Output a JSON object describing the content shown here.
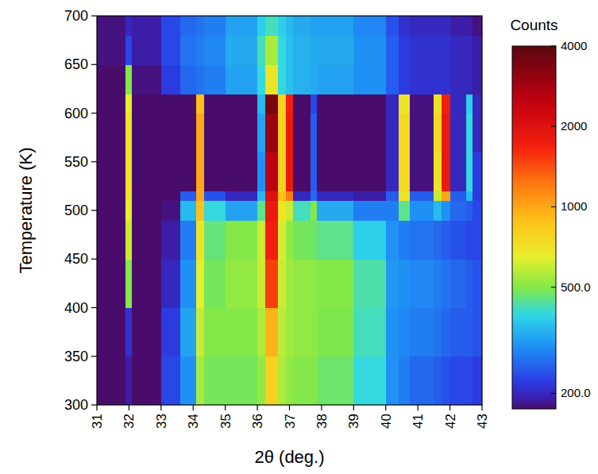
{
  "chart_data": {
    "type": "heatmap",
    "xlabel": "2θ (deg.)",
    "ylabel": "Temperature (K)",
    "colorbar_label": "Counts",
    "xlim": [
      31,
      43
    ],
    "ylim": [
      300,
      700
    ],
    "xticks": [
      31,
      32,
      33,
      34,
      35,
      36,
      37,
      38,
      39,
      40,
      41,
      42,
      43
    ],
    "yticks": [
      300,
      350,
      400,
      450,
      500,
      550,
      600,
      650,
      700
    ],
    "x_edges": [
      31,
      31.9,
      32.1,
      33,
      33.6,
      34.1,
      34.35,
      35,
      36,
      36.25,
      36.65,
      36.9,
      37.1,
      37.65,
      37.85,
      39,
      40,
      40.4,
      40.75,
      41.5,
      41.75,
      42,
      42.5,
      42.7,
      43
    ],
    "y_edges": [
      300,
      350,
      400,
      450,
      490,
      510,
      520,
      560,
      600,
      620,
      650,
      680,
      700
    ],
    "cells": [
      [
        160,
        190,
        170,
        230,
        300,
        550,
        480,
        480,
        520,
        800,
        560,
        520,
        500,
        500,
        470,
        400,
        300,
        280,
        260,
        250,
        240,
        230,
        230,
        220
      ],
      [
        160,
        210,
        170,
        220,
        320,
        600,
        500,
        500,
        560,
        950,
        580,
        540,
        520,
        510,
        490,
        420,
        300,
        290,
        280,
        270,
        260,
        250,
        250,
        240
      ],
      [
        160,
        500,
        170,
        200,
        300,
        650,
        480,
        520,
        600,
        1500,
        600,
        540,
        520,
        510,
        500,
        430,
        310,
        300,
        290,
        280,
        270,
        260,
        250,
        240
      ],
      [
        160,
        600,
        160,
        190,
        280,
        700,
        460,
        500,
        600,
        1700,
        620,
        520,
        480,
        470,
        450,
        380,
        300,
        280,
        270,
        260,
        250,
        240,
        230,
        230
      ],
      [
        150,
        650,
        150,
        180,
        350,
        900,
        400,
        320,
        450,
        1800,
        700,
        600,
        420,
        500,
        330,
        280,
        280,
        450,
        300,
        350,
        300,
        260,
        250,
        230
      ],
      [
        140,
        700,
        140,
        150,
        250,
        1000,
        240,
        200,
        350,
        2000,
        900,
        1200,
        200,
        260,
        200,
        190,
        250,
        700,
        250,
        600,
        1000,
        250,
        350,
        220
      ],
      [
        130,
        700,
        130,
        140,
        160,
        1000,
        150,
        145,
        300,
        2500,
        800,
        1800,
        150,
        250,
        140,
        140,
        200,
        750,
        180,
        700,
        1800,
        200,
        400,
        220
      ],
      [
        130,
        700,
        130,
        140,
        160,
        1000,
        150,
        145,
        320,
        3000,
        800,
        1800,
        150,
        250,
        140,
        140,
        200,
        750,
        180,
        750,
        1800,
        200,
        400,
        200
      ],
      [
        130,
        650,
        130,
        140,
        160,
        900,
        150,
        145,
        350,
        3500,
        800,
        1700,
        150,
        230,
        140,
        140,
        200,
        700,
        180,
        700,
        1700,
        200,
        380,
        200
      ],
      [
        170,
        500,
        180,
        220,
        260,
        270,
        280,
        320,
        400,
        700,
        400,
        360,
        340,
        330,
        320,
        300,
        250,
        220,
        210,
        210,
        210,
        200,
        200,
        190
      ],
      [
        180,
        230,
        190,
        230,
        270,
        280,
        290,
        330,
        420,
        550,
        400,
        360,
        340,
        330,
        330,
        300,
        250,
        220,
        210,
        210,
        210,
        200,
        200,
        190
      ],
      [
        180,
        200,
        190,
        230,
        260,
        270,
        280,
        320,
        380,
        420,
        380,
        350,
        330,
        320,
        320,
        290,
        240,
        210,
        200,
        200,
        200,
        190,
        190,
        180
      ]
    ],
    "clim": [
      175,
      4000
    ],
    "colorbar_ticks": [
      {
        "value": 200,
        "label": "200.0"
      },
      {
        "value": 500,
        "label": "500.0"
      },
      1000,
      2000,
      4000
    ]
  }
}
